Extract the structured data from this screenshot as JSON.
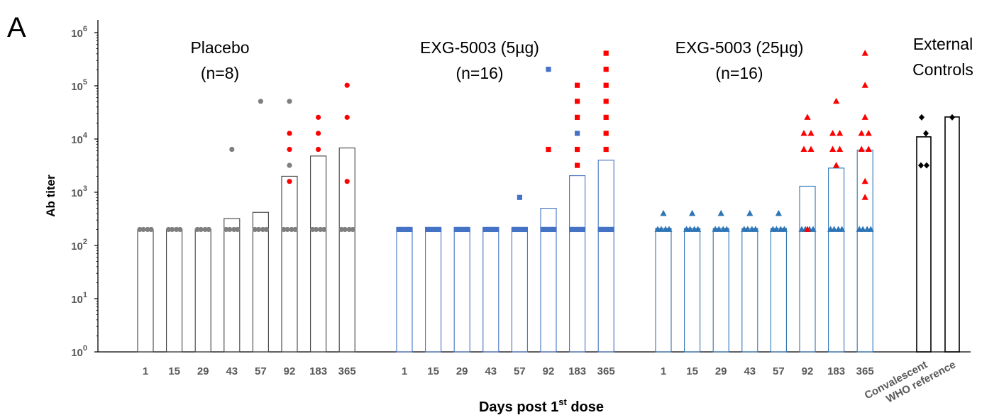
{
  "panel_label": "A",
  "chart_data": {
    "type": "bar",
    "ylabel": "Ab titer",
    "xlabel": "Days post 1st dose",
    "xlabel_main": "Days post 1",
    "xlabel_sup": "st",
    "xlabel_tail": " dose",
    "yscale": "log",
    "ylim": [
      1,
      1000000
    ],
    "yticks": [
      {
        "base": "10",
        "exp": "0"
      },
      {
        "base": "10",
        "exp": "1"
      },
      {
        "base": "10",
        "exp": "2"
      },
      {
        "base": "10",
        "exp": "3"
      },
      {
        "base": "10",
        "exp": "4"
      },
      {
        "base": "10",
        "exp": "5"
      },
      {
        "base": "10",
        "exp": "6"
      }
    ],
    "day_labels": [
      "1",
      "15",
      "29",
      "43",
      "57",
      "92",
      "183",
      "365"
    ],
    "groups": [
      {
        "name": "Placebo",
        "subtitle": "(n=8)",
        "bar_color": "#404040",
        "baseline_color": "#7f7f7f",
        "responder_color": "#ff0000",
        "marker": "circle",
        "values": [
          200,
          200,
          200,
          320,
          420,
          2000,
          4800,
          6800
        ],
        "points": [
          {
            "day": "1",
            "baseline": [
              200
            ],
            "responders": []
          },
          {
            "day": "15",
            "baseline": [
              200
            ],
            "responders": []
          },
          {
            "day": "29",
            "baseline": [
              200
            ],
            "responders": []
          },
          {
            "day": "43",
            "baseline": [
              200,
              6400
            ],
            "responders": []
          },
          {
            "day": "57",
            "baseline": [
              200,
              51200
            ],
            "responders": []
          },
          {
            "day": "92",
            "baseline": [
              200,
              3200,
              51200
            ],
            "responders": [
              1600,
              6400,
              12800
            ]
          },
          {
            "day": "183",
            "baseline": [
              200
            ],
            "responders": [
              6400,
              12800,
              25600
            ]
          },
          {
            "day": "365",
            "baseline": [
              200
            ],
            "responders": [
              1600,
              25600,
              102400
            ]
          }
        ]
      },
      {
        "name": "EXG-5003 (5µg)",
        "subtitle": "(n=16)",
        "bar_color": "#4472c4",
        "baseline_color": "#4472c4",
        "responder_color": "#ff0000",
        "marker": "square",
        "values": [
          200,
          200,
          200,
          210,
          210,
          500,
          2050,
          4000
        ],
        "points": [
          {
            "day": "1",
            "baseline": [
              200
            ],
            "responders": []
          },
          {
            "day": "15",
            "baseline": [
              200
            ],
            "responders": []
          },
          {
            "day": "29",
            "baseline": [
              200
            ],
            "responders": []
          },
          {
            "day": "43",
            "baseline": [
              200
            ],
            "responders": []
          },
          {
            "day": "57",
            "baseline": [
              200,
              800
            ],
            "responders": []
          },
          {
            "day": "92",
            "baseline": [
              200,
              204800
            ],
            "responders": [
              6400
            ]
          },
          {
            "day": "183",
            "baseline": [
              200,
              12800
            ],
            "responders": [
              3200,
              6400,
              25600,
              51200,
              102400
            ]
          },
          {
            "day": "365",
            "baseline": [
              200
            ],
            "responders": [
              6400,
              12800,
              25600,
              51200,
              102400,
              204800,
              409600
            ]
          }
        ]
      },
      {
        "name": "EXG-5003 (25µg)",
        "subtitle": "(n=16)",
        "bar_color": "#2e75b6",
        "baseline_color": "#2e75b6",
        "responder_color": "#ff0000",
        "marker": "triangle",
        "values": [
          210,
          210,
          210,
          210,
          210,
          1300,
          2850,
          6200
        ],
        "points": [
          {
            "day": "1",
            "baseline": [
              200,
              400
            ],
            "responders": []
          },
          {
            "day": "15",
            "baseline": [
              200,
              400
            ],
            "responders": []
          },
          {
            "day": "29",
            "baseline": [
              200,
              400
            ],
            "responders": []
          },
          {
            "day": "43",
            "baseline": [
              200,
              400
            ],
            "responders": []
          },
          {
            "day": "57",
            "baseline": [
              200,
              400
            ],
            "responders": []
          },
          {
            "day": "92",
            "baseline": [
              200
            ],
            "responders": [
              200,
              6400,
              12800,
              25600
            ]
          },
          {
            "day": "183",
            "baseline": [
              200
            ],
            "responders": [
              3200,
              6400,
              12800,
              51200
            ]
          },
          {
            "day": "365",
            "baseline": [
              200
            ],
            "responders": [
              800,
              1600,
              6400,
              12800,
              25600,
              102400,
              409600
            ]
          }
        ]
      },
      {
        "name": "External",
        "subtitle": "Controls",
        "bar_color": "#000000",
        "marker": "diamond",
        "categories": [
          "Convalescent",
          "WHO reference"
        ],
        "values": [
          11000,
          26000
        ],
        "points": [
          {
            "category": "Convalescent",
            "values": [
              3200,
              3200,
              12800,
              25600
            ]
          },
          {
            "category": "WHO reference",
            "values": [
              25600
            ]
          }
        ]
      }
    ]
  }
}
